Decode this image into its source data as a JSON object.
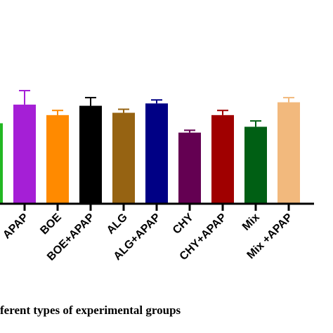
{
  "chart_data": {
    "type": "bar",
    "xlabel": "ferent types of experimental groups",
    "ylabel": "",
    "ylim": [
      0,
      100
    ],
    "grid": false,
    "categories": [
      "",
      "APAP",
      "BOE",
      "BOE+APAP",
      "ALG",
      "ALG+APAP",
      "CHY",
      "CHY+APAP",
      "Mix",
      "Mix +APAP"
    ],
    "values": [
      69,
      85,
      76,
      84,
      78,
      86,
      61,
      76,
      66,
      87
    ],
    "errors": [
      0,
      12,
      4,
      7,
      3,
      3,
      2,
      4,
      5,
      4
    ],
    "colors": [
      "#22b822",
      "#a51fd6",
      "#ff8a00",
      "#000000",
      "#966312",
      "#000085",
      "#640052",
      "#a00000",
      "#005f14",
      "#f2b97d"
    ]
  }
}
